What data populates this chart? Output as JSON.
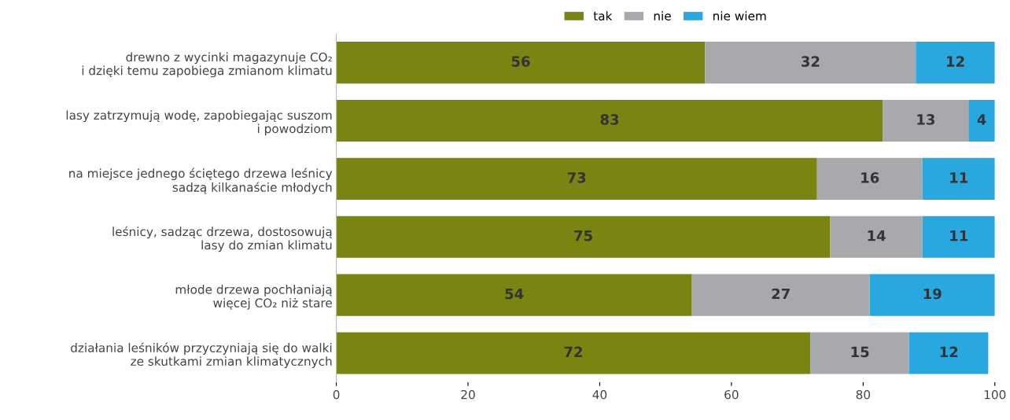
{
  "chart_data": {
    "type": "bar",
    "orientation": "horizontal",
    "stacked": true,
    "data_labels": true,
    "legend": "top",
    "grid": false,
    "categories": [
      "drewno z wycinki magazynuje CO₂\ni dzięki temu zapobiega zmianom klimatu",
      "lasy zatrzymują wodę, zapobiegając suszom\ni powodziom",
      "na miejsce jednego ściętego drzewa leśnicy\nsadzą kilkanaście młodych",
      "leśnicy, sadząc drzewa, dostosowują\nlasy do zmian klimatu",
      "młode drzewa pochłaniają\nwięcej CO₂ niż stare",
      "działania leśników przyczyniają się do walki\nze skutkami zmian klimatycznych"
    ],
    "series": [
      {
        "name": "tak",
        "color": "#7a8410",
        "values": [
          56,
          83,
          73,
          75,
          54,
          72
        ]
      },
      {
        "name": "nie",
        "color": "#a7a9ac",
        "values": [
          32,
          13,
          16,
          14,
          27,
          15
        ]
      },
      {
        "name": "nie wiem",
        "color": "#29a8e0",
        "values": [
          12,
          4,
          11,
          11,
          19,
          12
        ]
      }
    ],
    "xlim": [
      0,
      100
    ],
    "xticks": [
      0,
      20,
      40,
      60,
      80,
      100
    ]
  }
}
